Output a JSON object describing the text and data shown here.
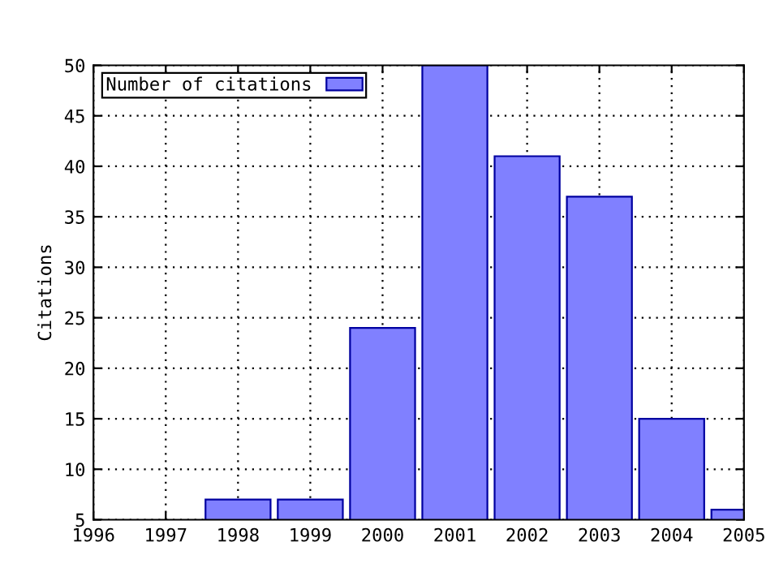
{
  "chart_data": {
    "type": "bar",
    "ylabel": "Citations",
    "x": [
      1998,
      1999,
      2000,
      2001,
      2002,
      2003,
      2004,
      2005
    ],
    "series": [
      {
        "name": "Number of citations",
        "color": "#8080ff",
        "values": [
          7,
          7,
          24,
          50,
          41,
          37,
          15,
          6
        ]
      }
    ],
    "xlim": [
      1996,
      2005
    ],
    "xticks": [
      1996,
      1997,
      1998,
      1999,
      2000,
      2001,
      2002,
      2003,
      2004,
      2005
    ],
    "ylim": [
      5,
      50
    ],
    "yticks": [
      5,
      10,
      15,
      20,
      25,
      30,
      35,
      40,
      45,
      50
    ],
    "grid": true,
    "legend": "top left"
  }
}
